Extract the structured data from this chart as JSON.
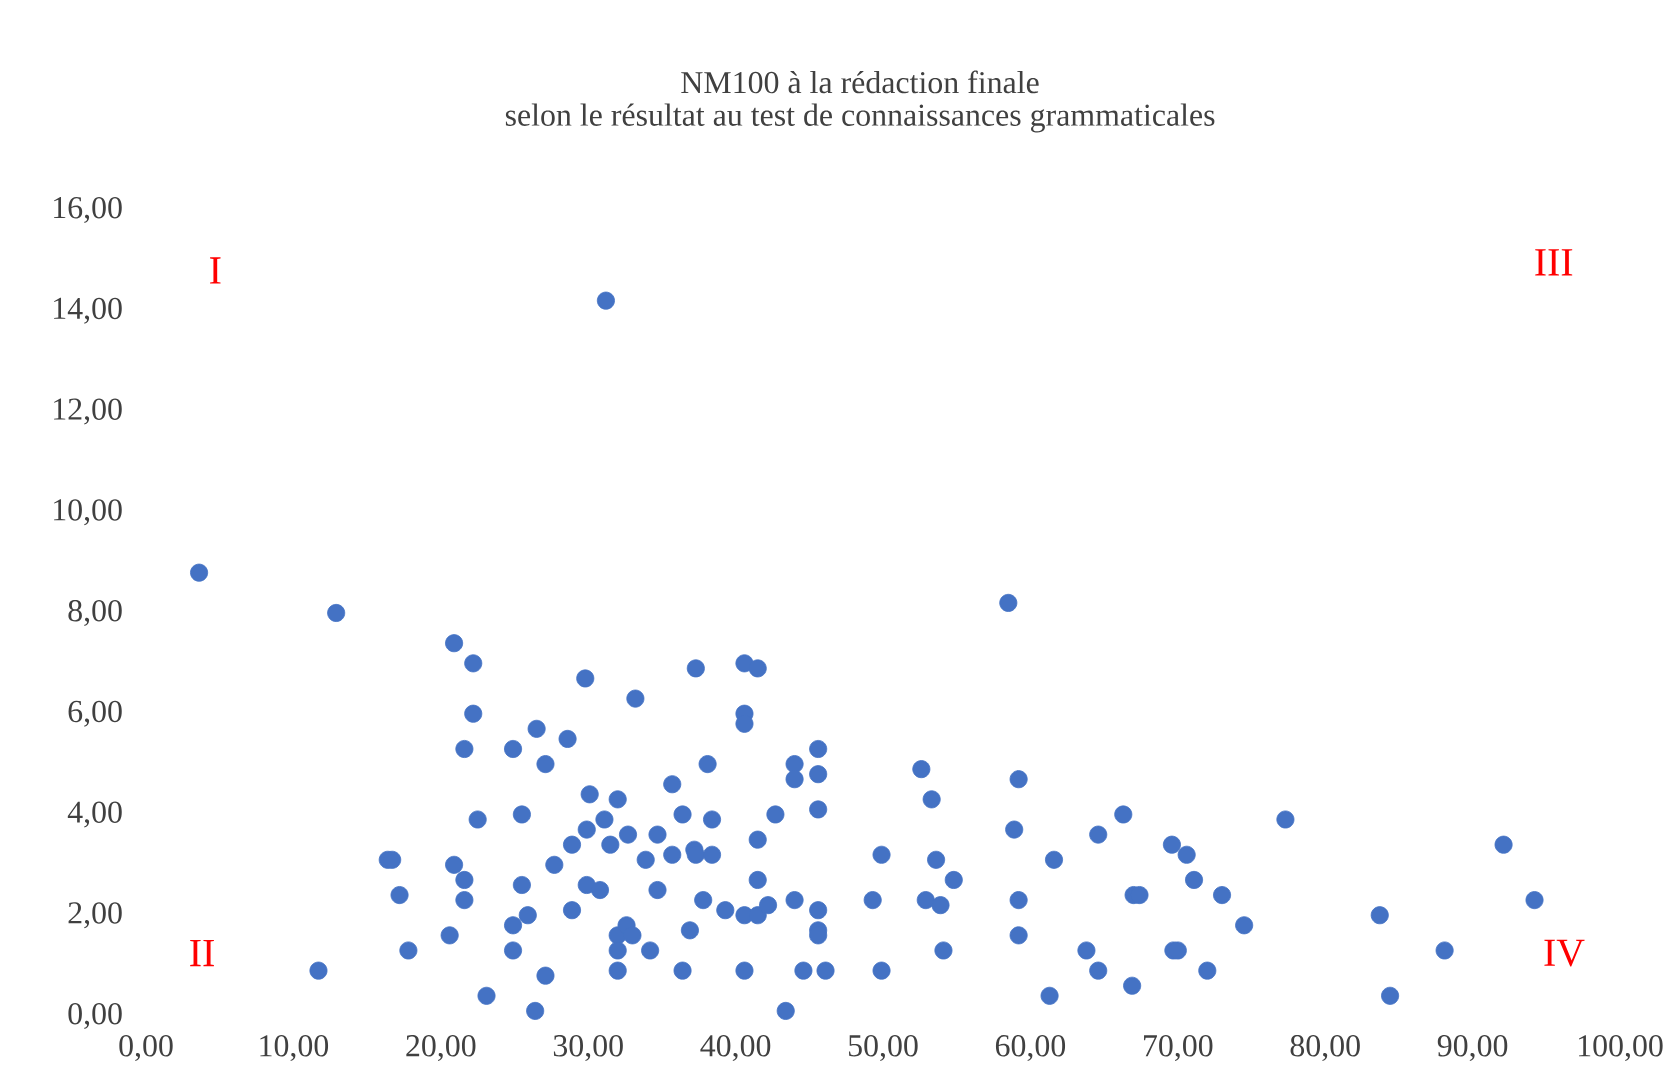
{
  "chart_data": {
    "type": "scatter",
    "title": "NM100 à la rédaction finale",
    "subtitle": "selon le résultat au test de connaissances grammaticales",
    "annotations": [
      "I",
      "II",
      "III",
      "IV"
    ],
    "marker": "circle",
    "xlim": [
      0,
      100
    ],
    "ylim": [
      0,
      16
    ],
    "xticks": [
      {
        "value": 0,
        "label": "0,00"
      },
      {
        "value": 10,
        "label": "10,00"
      },
      {
        "value": 20,
        "label": "20,00"
      },
      {
        "value": 30,
        "label": "30,00"
      },
      {
        "value": 40,
        "label": "40,00"
      },
      {
        "value": 50,
        "label": "50,00"
      },
      {
        "value": 60,
        "label": "60,00"
      },
      {
        "value": 70,
        "label": "70,00"
      },
      {
        "value": 80,
        "label": "80,00"
      },
      {
        "value": 90,
        "label": "90,00"
      },
      {
        "value": 100,
        "label": "100,00"
      }
    ],
    "yticks": [
      {
        "value": 0,
        "label": "0,00"
      },
      {
        "value": 2,
        "label": "2,00"
      },
      {
        "value": 4,
        "label": "4,00"
      },
      {
        "value": 6,
        "label": "6,00"
      },
      {
        "value": 8,
        "label": "8,00"
      },
      {
        "value": 10,
        "label": "10,00"
      },
      {
        "value": 12,
        "label": "12,00"
      },
      {
        "value": 14,
        "label": "14,00"
      },
      {
        "value": 16,
        "label": "16,00"
      }
    ],
    "series": [
      {
        "color": "#4472c4",
        "x": [
          3.6,
          12.9,
          11.7,
          31.2,
          20.9,
          22.2,
          22.2,
          21.6,
          26.5,
          29.8,
          33.2,
          24.9,
          28.6,
          27.1,
          16.4,
          16.7,
          17.2,
          17.8,
          20.6,
          20.9,
          21.6,
          21.6,
          22.5,
          23.1,
          25.5,
          25.5,
          24.9,
          25.9,
          24.9,
          27.1,
          26.4,
          27.7,
          28.9,
          29.9,
          31.1,
          31.5,
          30.1,
          32.0,
          28.9,
          29.9,
          30.8,
          32.7,
          34.7,
          33.9,
          35.7,
          36.4,
          38.1,
          38.4,
          35.7,
          37.2,
          37.3,
          38.4,
          34.7,
          37.8,
          39.3,
          32.0,
          32.6,
          33.0,
          32.0,
          34.2,
          36.9,
          32.0,
          36.4,
          37.3,
          40.6,
          41.5,
          40.6,
          40.6,
          44.0,
          45.6,
          44.0,
          45.6,
          45.6,
          42.7,
          41.5,
          41.5,
          40.6,
          41.5,
          42.2,
          44.0,
          45.6,
          45.6,
          45.6,
          40.6,
          44.6,
          46.1,
          43.4,
          49.9,
          49.3,
          49.9,
          52.6,
          53.3,
          53.6,
          54.8,
          52.9,
          53.9,
          54.1,
          58.5,
          59.2,
          58.9,
          59.2,
          59.2,
          61.6,
          61.3,
          63.8,
          64.6,
          64.6,
          66.3,
          67.0,
          67.4,
          66.9,
          69.6,
          70.6,
          71.1,
          73.0,
          74.5,
          69.7,
          70.0,
          72.0,
          77.3,
          83.7,
          84.4,
          88.1,
          92.1,
          94.2
        ],
        "values": [
          8.8,
          8.0,
          0.9,
          14.2,
          7.4,
          7.0,
          6.0,
          5.3,
          5.7,
          6.7,
          6.3,
          5.3,
          5.5,
          5.0,
          3.1,
          3.1,
          2.4,
          1.3,
          1.6,
          3.0,
          2.7,
          2.3,
          3.9,
          0.4,
          4.0,
          2.6,
          1.8,
          2.0,
          1.3,
          0.8,
          0.1,
          3.0,
          3.4,
          3.7,
          3.9,
          3.4,
          4.4,
          4.3,
          2.1,
          2.6,
          2.5,
          3.6,
          3.6,
          3.1,
          4.6,
          4.0,
          5.0,
          3.9,
          3.2,
          3.3,
          3.2,
          3.2,
          2.5,
          2.3,
          2.1,
          1.6,
          1.8,
          1.6,
          1.3,
          1.3,
          1.7,
          0.9,
          0.9,
          6.9,
          7.0,
          6.9,
          6.0,
          5.8,
          5.0,
          5.3,
          4.7,
          4.8,
          4.1,
          4.0,
          3.5,
          2.7,
          2.0,
          2.0,
          2.2,
          2.3,
          2.1,
          1.7,
          1.6,
          0.9,
          0.9,
          0.9,
          0.1,
          3.2,
          2.3,
          0.9,
          4.9,
          4.3,
          3.1,
          2.7,
          2.3,
          2.2,
          1.3,
          8.2,
          4.7,
          3.7,
          2.3,
          1.6,
          3.1,
          0.4,
          1.3,
          0.9,
          3.6,
          4.0,
          2.4,
          2.4,
          0.6,
          3.4,
          3.2,
          2.7,
          2.4,
          1.8,
          1.3,
          1.3,
          0.9,
          3.9,
          2.0,
          0.4,
          1.3,
          3.4,
          2.3
        ]
      }
    ]
  }
}
